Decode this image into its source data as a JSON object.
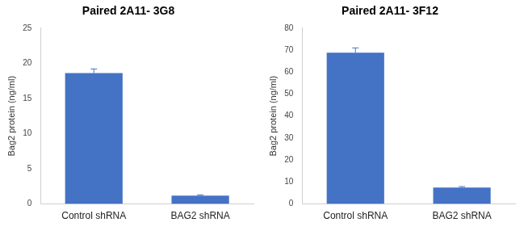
{
  "chart_data": [
    {
      "type": "bar",
      "title": "Paired 2A11- 3G8",
      "y_label": "Bag2 protein (ng/ml)",
      "categories": [
        "Control shRNA",
        "BAG2 shRNA"
      ],
      "values": [
        18.6,
        1.2
      ],
      "errors": [
        0.6,
        0.1
      ],
      "color": "#4472c4",
      "ylim": [
        0,
        25
      ],
      "yticks": [
        0,
        5,
        10,
        15,
        20,
        25
      ],
      "grid": false
    },
    {
      "type": "bar",
      "title": "Paired 2A11- 3F12",
      "y_label": "Bag2 protein (ng/ml)",
      "categories": [
        "Control shRNA",
        "BAG2 shRNA"
      ],
      "values": [
        68.8,
        7.5
      ],
      "errors": [
        2.2,
        0.4
      ],
      "color": "#4472c4",
      "ylim": [
        0,
        80
      ],
      "yticks": [
        0,
        10,
        20,
        30,
        40,
        50,
        60,
        70,
        80
      ],
      "grid": false
    }
  ]
}
